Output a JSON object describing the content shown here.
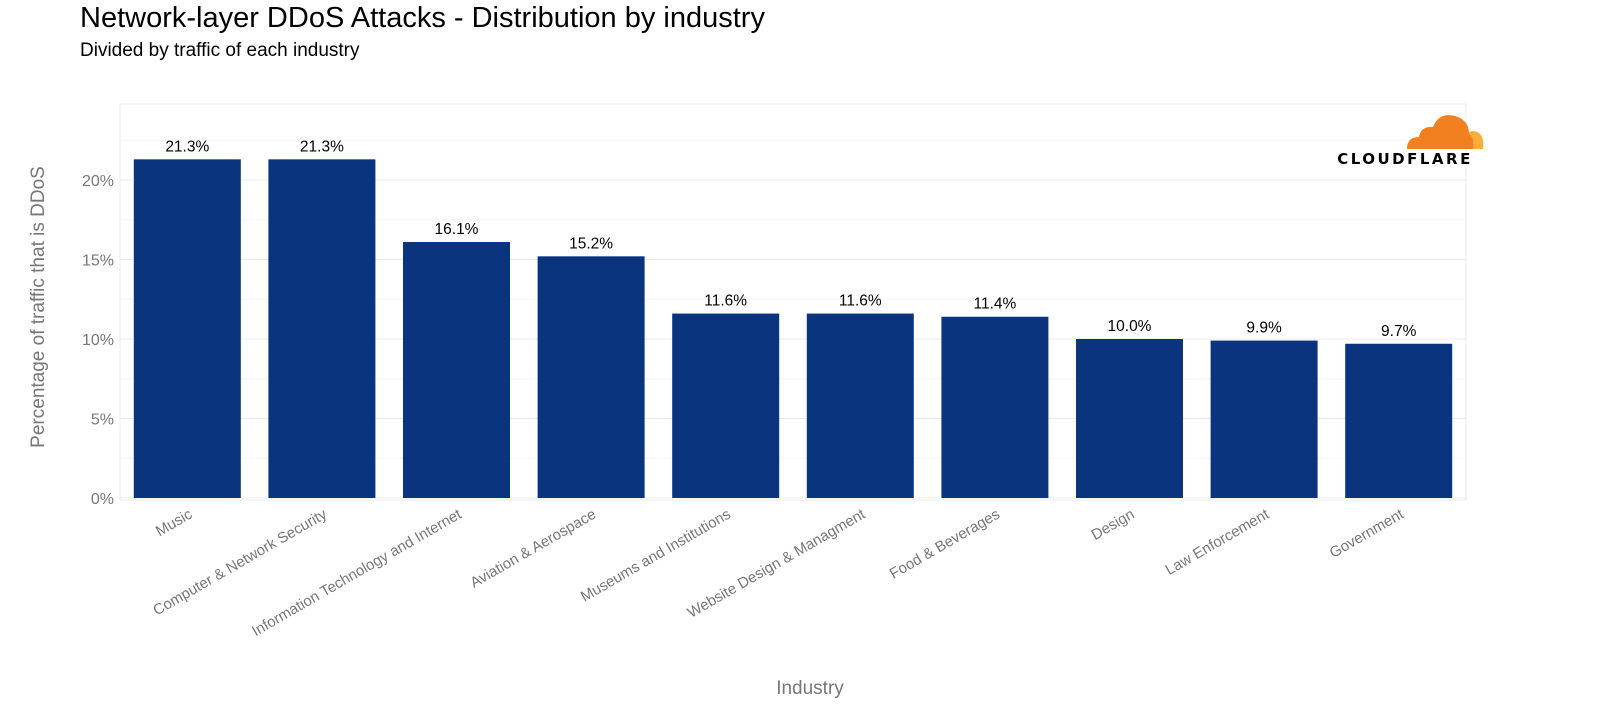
{
  "chart_data": {
    "type": "bar",
    "title": "Network-layer DDoS Attacks - Distribution by industry",
    "subtitle": "Divided by traffic of each industry",
    "xlabel": "Industry",
    "ylabel": "Percentage of traffic that is DDoS",
    "categories": [
      "Music",
      "Computer & Network Security",
      "Information Technology and Internet",
      "Aviation & Aerospace",
      "Museums and Institutions",
      "Website Design & Managment",
      "Food & Beverages",
      "Design",
      "Law Enforcement",
      "Government"
    ],
    "values": [
      21.3,
      21.3,
      16.1,
      15.2,
      11.6,
      11.6,
      11.4,
      10.0,
      9.9,
      9.7
    ],
    "data_labels": [
      "21.3%",
      "21.3%",
      "16.1%",
      "15.2%",
      "11.6%",
      "11.6%",
      "11.4%",
      "10.0%",
      "9.9%",
      "9.7%"
    ],
    "y_ticks": [
      0,
      5,
      10,
      15,
      20
    ],
    "y_tick_labels": [
      "0%",
      "5%",
      "10%",
      "15%",
      "20%"
    ],
    "ylim": [
      0,
      24.4
    ],
    "grid": true,
    "legend": "none",
    "bar_color": "#0a357e",
    "grid_color": "#ebebeb"
  },
  "logo": {
    "text": "CLOUDFLARE",
    "cloud_color": "#f38020",
    "cloud_color_light": "#faad3f"
  }
}
